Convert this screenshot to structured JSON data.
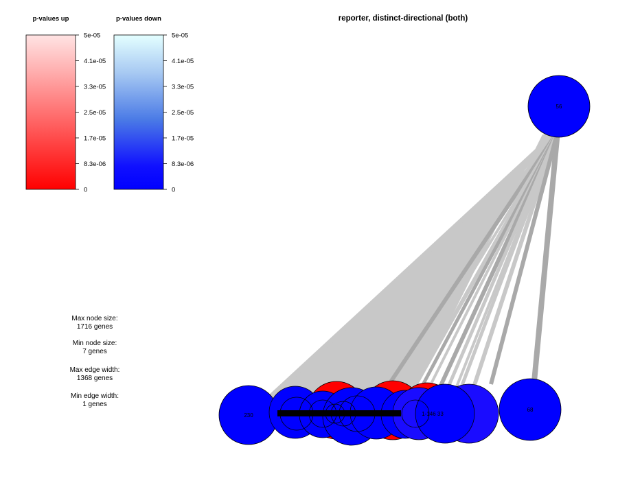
{
  "title": "reporter, distinct-directional (both)",
  "legend_up": {
    "title": "p-values up",
    "ticks": [
      "5e-05",
      "4.1e-05",
      "3.3e-05",
      "2.5e-05",
      "1.7e-05",
      "8.3e-06",
      "0"
    ],
    "color_low": "#ff0000",
    "color_high": "#ffe4e4"
  },
  "legend_down": {
    "title": "p-values down",
    "ticks": [
      "5e-05",
      "4.1e-05",
      "3.3e-05",
      "2.5e-05",
      "1.7e-05",
      "8.3e-06",
      "0"
    ],
    "color_low": "#0000ff",
    "color_high": "#e4ffff"
  },
  "info": {
    "max_node_label": "Max node size:",
    "max_node_value": "1716 genes",
    "min_node_label": "Min node size:",
    "min_node_value": "7 genes",
    "max_edge_label": "Max edge width:",
    "max_edge_value": "1368 genes",
    "min_edge_label": "Min edge width:",
    "min_edge_value": "1 genes"
  },
  "colors": {
    "up": "#ff0000",
    "down": "#0000ff",
    "edge_light": "#c8c8c8",
    "edge_dark": "#a9a9a9"
  },
  "node_labels": {
    "top": "56",
    "right": "68",
    "left": "230",
    "mid_right": "153",
    "cluster_a": "172",
    "cluster_b": "1-146 33"
  }
}
